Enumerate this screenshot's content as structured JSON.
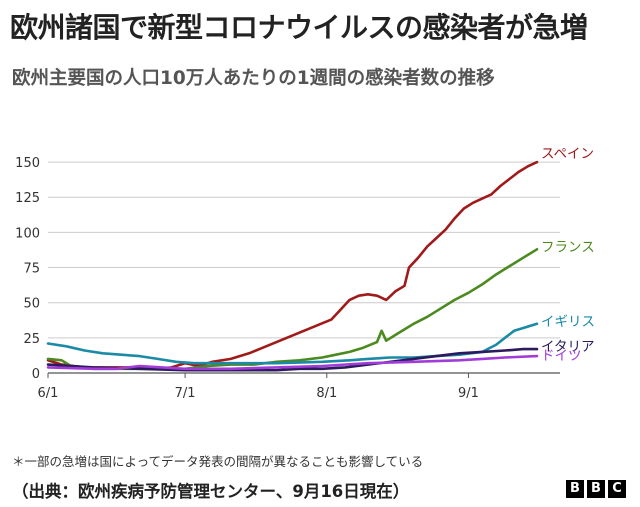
{
  "header": {
    "title": "欧州諸国で新型コロナウイルスの感染者が急増",
    "subtitle": "欧州主要国の人口10万人あたりの1週間の感染者数の推移"
  },
  "footer": {
    "note": "＊一部の急増は国によってデータ発表の間隔が異なることも影響している",
    "source": "（出典：欧州疾病予防管理センター、9月16日現在）",
    "logo_letters": [
      "B",
      "B",
      "C"
    ]
  },
  "chart_data": {
    "type": "line",
    "x_unit": "days since 6/1",
    "xlim": [
      0,
      107
    ],
    "ylim": [
      0,
      160
    ],
    "yticks": [
      0,
      25,
      50,
      75,
      100,
      125,
      150
    ],
    "xticks": [
      {
        "label": "6/1",
        "x": 0
      },
      {
        "label": "7/1",
        "x": 30
      },
      {
        "label": "8/1",
        "x": 61
      },
      {
        "label": "9/1",
        "x": 92
      }
    ],
    "grid": "horizontal",
    "series": [
      {
        "name": "スペイン",
        "color": "#a11a1a",
        "points": [
          [
            0,
            9
          ],
          [
            3,
            6
          ],
          [
            8,
            4
          ],
          [
            14,
            4
          ],
          [
            20,
            4
          ],
          [
            24,
            3
          ],
          [
            27,
            4
          ],
          [
            30,
            7
          ],
          [
            33,
            5
          ],
          [
            36,
            8
          ],
          [
            40,
            10
          ],
          [
            44,
            14
          ],
          [
            47,
            18
          ],
          [
            50,
            22
          ],
          [
            53,
            26
          ],
          [
            56,
            30
          ],
          [
            59,
            34
          ],
          [
            62,
            38
          ],
          [
            64,
            45
          ],
          [
            66,
            52
          ],
          [
            68,
            55
          ],
          [
            70,
            56
          ],
          [
            72,
            55
          ],
          [
            74,
            52
          ],
          [
            76,
            58
          ],
          [
            78,
            62
          ],
          [
            79,
            75
          ],
          [
            81,
            82
          ],
          [
            83,
            90
          ],
          [
            85,
            96
          ],
          [
            87,
            102
          ],
          [
            89,
            110
          ],
          [
            91,
            117
          ],
          [
            93,
            121
          ],
          [
            95,
            124
          ],
          [
            97,
            127
          ],
          [
            99,
            133
          ],
          [
            101,
            138
          ],
          [
            103,
            143
          ],
          [
            105,
            147
          ],
          [
            107,
            150
          ]
        ]
      },
      {
        "name": "フランス",
        "color": "#4b8a1f",
        "points": [
          [
            0,
            10
          ],
          [
            3,
            9
          ],
          [
            5,
            5
          ],
          [
            10,
            3
          ],
          [
            20,
            3
          ],
          [
            30,
            3
          ],
          [
            35,
            5
          ],
          [
            40,
            6
          ],
          [
            45,
            6
          ],
          [
            50,
            8
          ],
          [
            55,
            9
          ],
          [
            60,
            11
          ],
          [
            63,
            13
          ],
          [
            66,
            15
          ],
          [
            69,
            18
          ],
          [
            72,
            22
          ],
          [
            73,
            30
          ],
          [
            74,
            23
          ],
          [
            76,
            27
          ],
          [
            78,
            31
          ],
          [
            80,
            35
          ],
          [
            83,
            40
          ],
          [
            86,
            46
          ],
          [
            89,
            52
          ],
          [
            92,
            57
          ],
          [
            95,
            63
          ],
          [
            98,
            70
          ],
          [
            101,
            76
          ],
          [
            104,
            82
          ],
          [
            107,
            88
          ]
        ]
      },
      {
        "name": "イギリス",
        "color": "#1a8aa6",
        "points": [
          [
            0,
            21
          ],
          [
            4,
            19
          ],
          [
            8,
            16
          ],
          [
            12,
            14
          ],
          [
            16,
            13
          ],
          [
            20,
            12
          ],
          [
            24,
            10
          ],
          [
            28,
            8
          ],
          [
            32,
            7
          ],
          [
            40,
            7
          ],
          [
            50,
            7
          ],
          [
            60,
            8
          ],
          [
            66,
            9
          ],
          [
            70,
            10
          ],
          [
            75,
            11
          ],
          [
            80,
            11
          ],
          [
            85,
            12
          ],
          [
            90,
            13
          ],
          [
            95,
            15
          ],
          [
            98,
            20
          ],
          [
            100,
            25
          ],
          [
            102,
            30
          ],
          [
            104,
            32
          ],
          [
            107,
            35
          ]
        ]
      },
      {
        "name": "イタリア",
        "color": "#2d1a5e",
        "points": [
          [
            0,
            6
          ],
          [
            5,
            5
          ],
          [
            10,
            4
          ],
          [
            20,
            3
          ],
          [
            30,
            2
          ],
          [
            40,
            2
          ],
          [
            50,
            2
          ],
          [
            55,
            3
          ],
          [
            60,
            3
          ],
          [
            65,
            4
          ],
          [
            70,
            6
          ],
          [
            75,
            8
          ],
          [
            80,
            10
          ],
          [
            85,
            12
          ],
          [
            90,
            14
          ],
          [
            95,
            15
          ],
          [
            100,
            16
          ],
          [
            104,
            17
          ],
          [
            107,
            17
          ]
        ]
      },
      {
        "name": "ドイツ",
        "color": "#a23cd9",
        "points": [
          [
            0,
            4
          ],
          [
            10,
            3
          ],
          [
            15,
            3
          ],
          [
            20,
            5
          ],
          [
            25,
            4
          ],
          [
            30,
            3
          ],
          [
            40,
            3
          ],
          [
            50,
            4
          ],
          [
            60,
            5
          ],
          [
            70,
            7
          ],
          [
            80,
            8
          ],
          [
            90,
            9
          ],
          [
            95,
            10
          ],
          [
            100,
            11
          ],
          [
            107,
            12
          ]
        ]
      }
    ],
    "end_labels": [
      "スペイン",
      "フランス",
      "イギリス",
      "イタリア",
      "ドイツ"
    ]
  }
}
